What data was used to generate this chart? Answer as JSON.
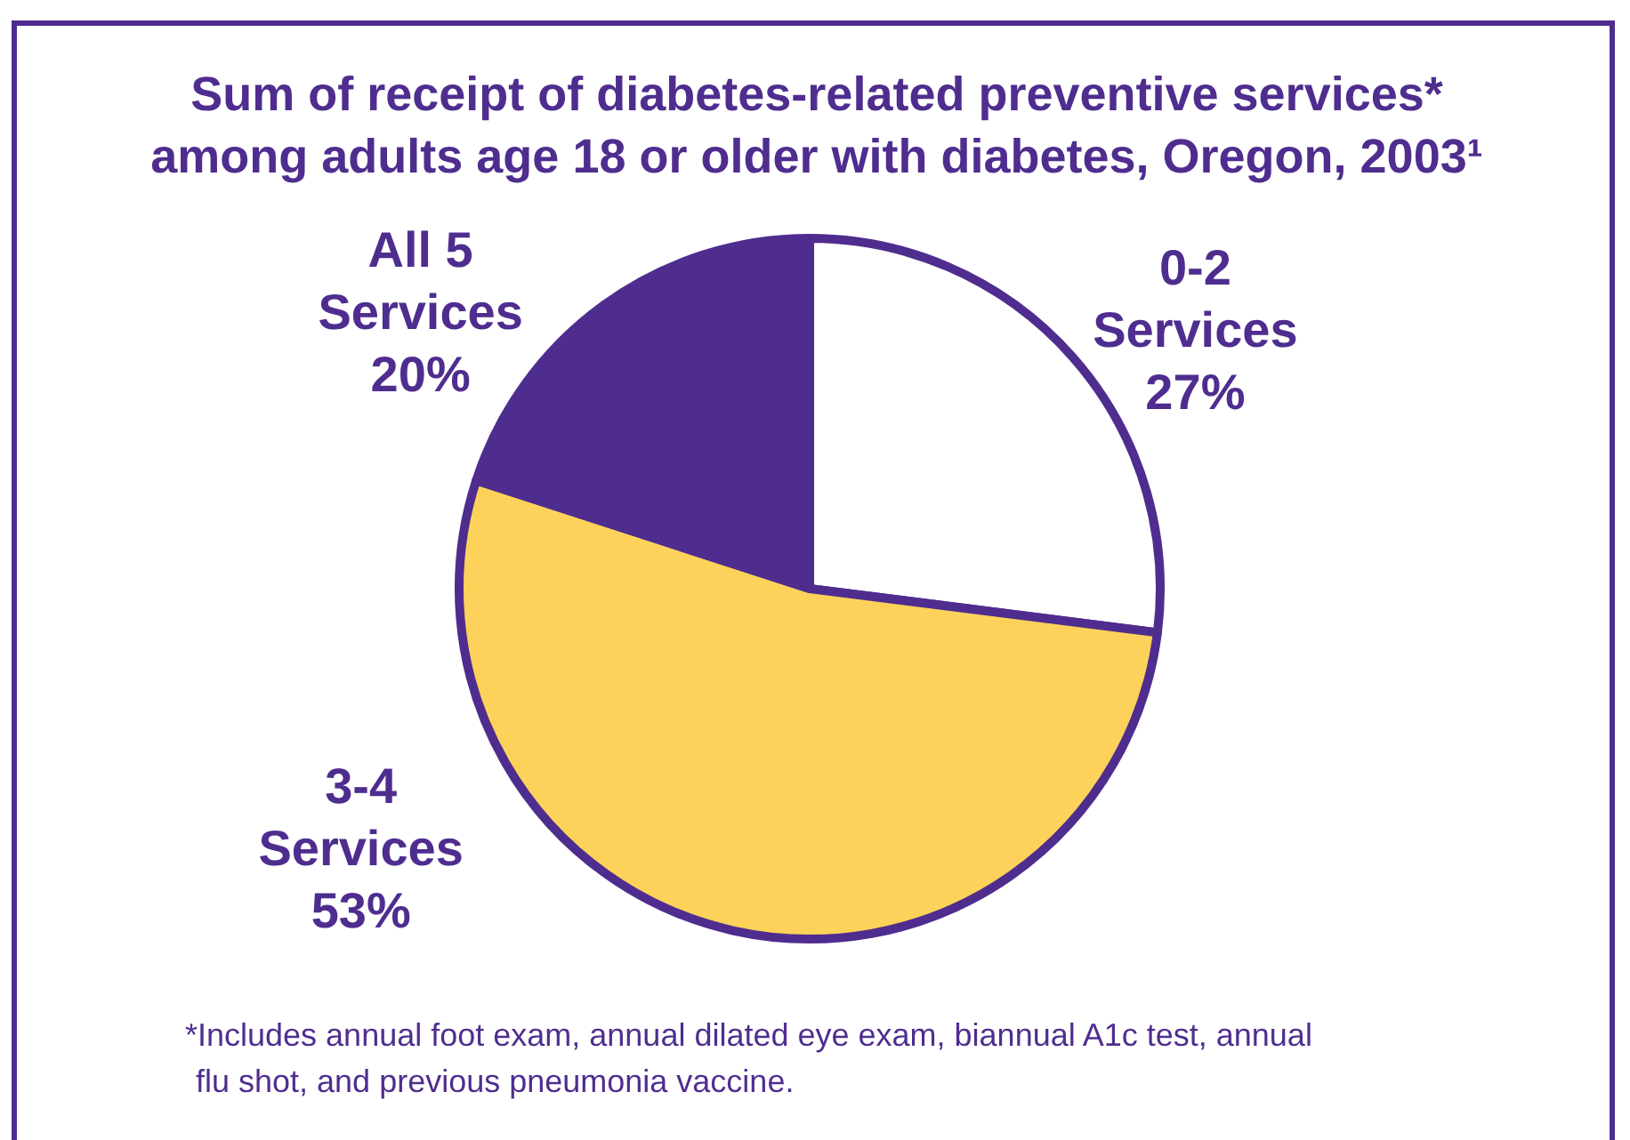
{
  "chart_data": {
    "type": "pie",
    "title": "Sum of receipt of diabetes-related preventive services*\namong adults age 18 or older with diabetes, Oregon, 2003¹",
    "categories": [
      "0-2 Services",
      "3-4 Services",
      "All 5 Services"
    ],
    "values": [
      27,
      53,
      20
    ],
    "colors": [
      "#ffffff",
      "#fdd25a",
      "#4f2d8f"
    ],
    "value_labels": [
      "27%",
      "53%",
      "20%"
    ],
    "annotations": [
      "*Includes annual foot exam, annual dilated eye exam, biannual A1c test, annual\nflu shot, and previous pneumonia vaccine."
    ]
  }
}
